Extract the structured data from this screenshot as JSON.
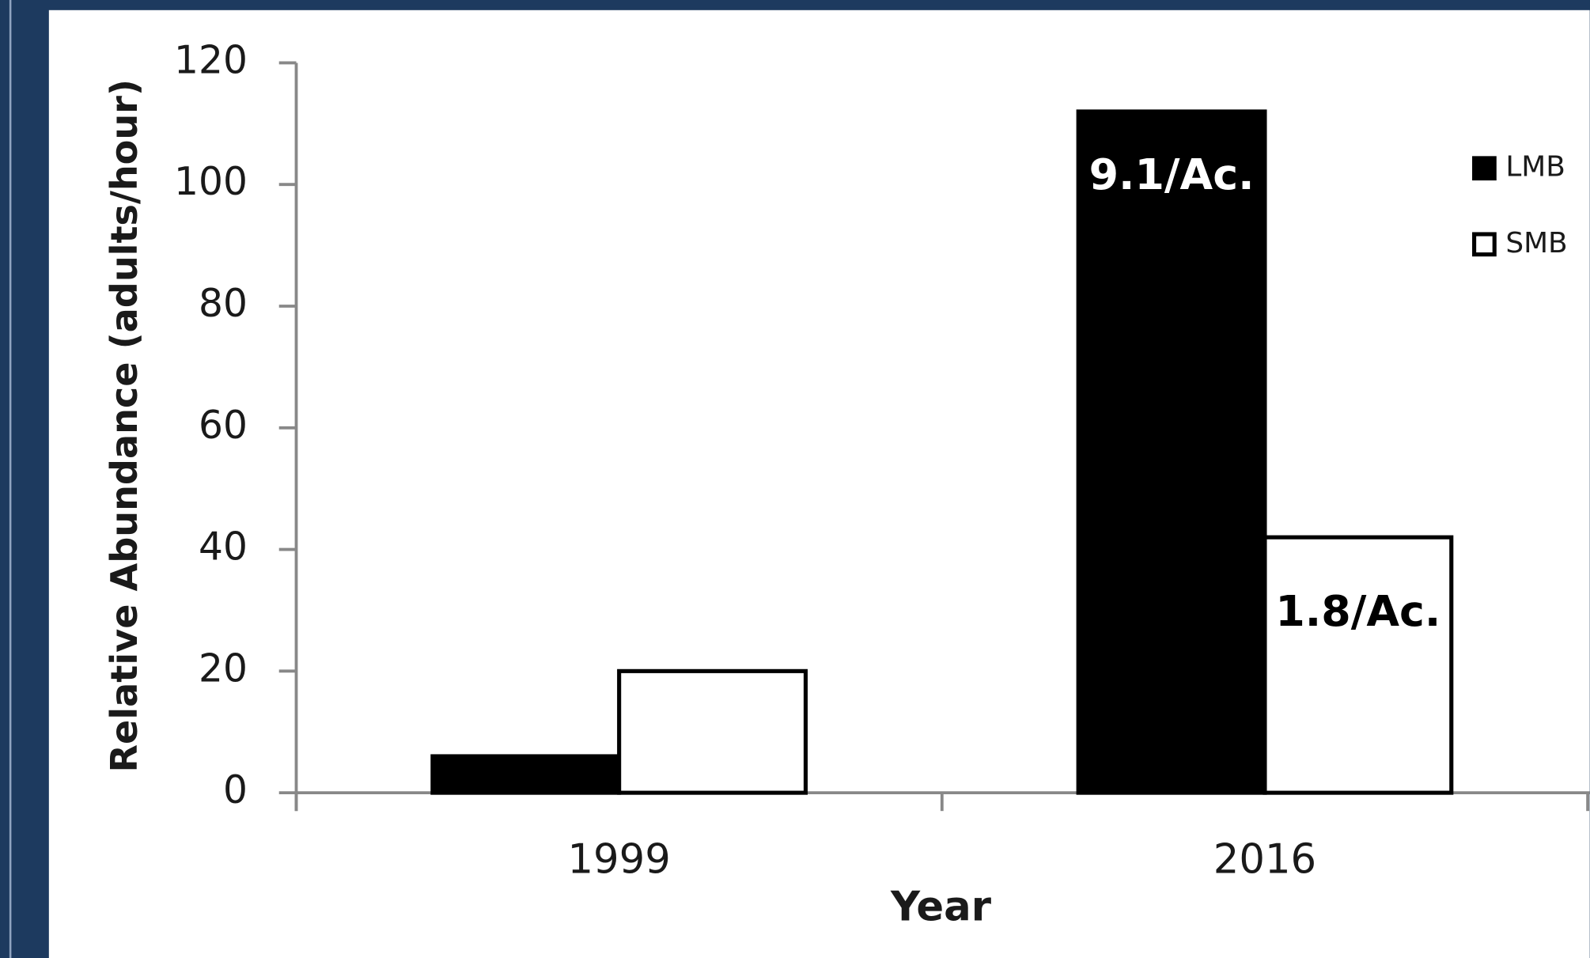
{
  "chart_data": {
    "type": "bar",
    "categories": [
      "1999",
      "2016"
    ],
    "series": [
      {
        "name": "LMB",
        "color": "#000000",
        "values": [
          6,
          112
        ]
      },
      {
        "name": "SMB",
        "color": "#ffffff",
        "values": [
          20,
          42
        ]
      }
    ],
    "ylim": [
      0,
      120
    ],
    "yticks": [
      0,
      20,
      40,
      60,
      80,
      100,
      120
    ],
    "x_label": "Year",
    "y_label": "Relative Abundance  (adults/hour)",
    "legend": "right",
    "annotations": [
      "9.1/Ac.",
      "1.8/Ac."
    ]
  }
}
